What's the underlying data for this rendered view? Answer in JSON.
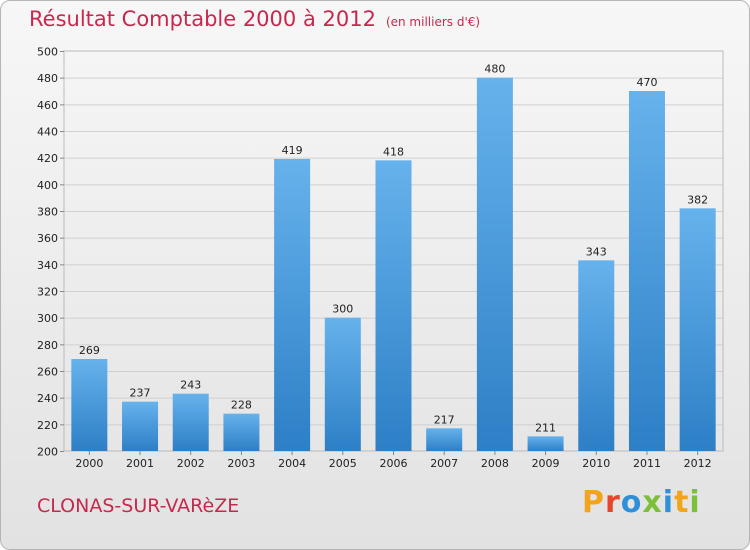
{
  "header": {
    "title": "Résultat Comptable 2000 à 2012",
    "subtitle": "(en milliers d'€)"
  },
  "footer": {
    "city": "CLONAS-SUR-VARèZE",
    "brand": "Proxiti",
    "brand_colors": [
      "#f2a51a",
      "#e8462a",
      "#2f8fd8",
      "#7bbf3a",
      "#2f8fd8",
      "#f2a51a",
      "#7bbf3a"
    ]
  },
  "chart_data": {
    "type": "bar",
    "title": "Résultat Comptable 2000 à 2012",
    "subtitle": "(en milliers d'€)",
    "xlabel": "",
    "ylabel": "",
    "categories": [
      "2000",
      "2001",
      "2002",
      "2003",
      "2004",
      "2005",
      "2006",
      "2007",
      "2008",
      "2009",
      "2010",
      "2011",
      "2012"
    ],
    "values": [
      269,
      237,
      243,
      228,
      419,
      300,
      418,
      217,
      480,
      211,
      343,
      470,
      382
    ],
    "ylim": [
      200,
      500
    ],
    "yticks": [
      200,
      220,
      240,
      260,
      280,
      300,
      320,
      340,
      360,
      380,
      400,
      420,
      440,
      460,
      480,
      500
    ],
    "grid": true,
    "legend": "none",
    "bar_color_light": "#66b2ec",
    "bar_color_dark": "#2d7fc6"
  }
}
